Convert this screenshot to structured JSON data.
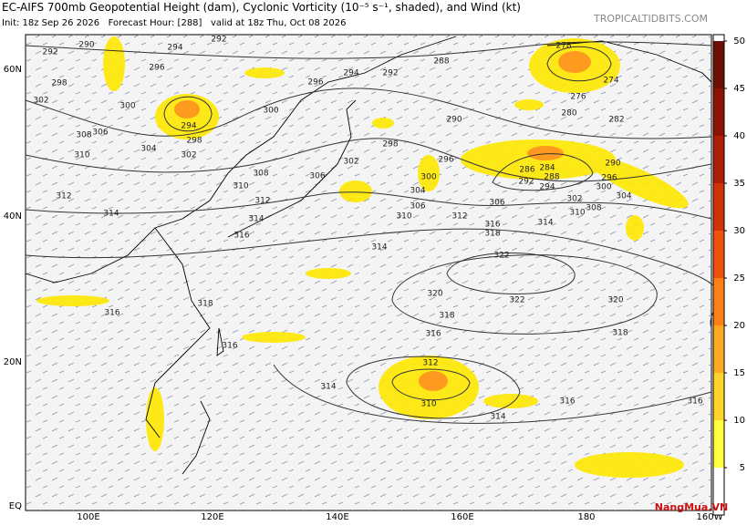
{
  "header": {
    "title": "EC-AIFS 700mb Geopotential Height (dam), Cyclonic Vorticity (10⁻⁵ s⁻¹, shaded), and Wind (kt)",
    "subtitle": "Init: 18z Sep 26 2026   Forecast Hour: [288]   valid at 18z Thu, Oct 08 2026",
    "source": "TROPICALTIDBITS.COM"
  },
  "map": {
    "lat_labels": [
      "60N",
      "40N",
      "20N",
      "EQ"
    ],
    "lon_labels": [
      "100E",
      "120E",
      "140E",
      "160E",
      "180",
      "160W"
    ],
    "contour_labels": [
      "290",
      "294",
      "292",
      "292",
      "296",
      "298",
      "302",
      "300",
      "294",
      "298",
      "306",
      "308",
      "304",
      "310",
      "302",
      "300",
      "294",
      "292",
      "296",
      "288",
      "290",
      "278",
      "274",
      "276",
      "280",
      "282",
      "298",
      "296",
      "302",
      "306",
      "308",
      "310",
      "312",
      "314",
      "316",
      "312",
      "314",
      "300",
      "304",
      "306",
      "310",
      "312",
      "316",
      "318",
      "314",
      "310",
      "308",
      "306",
      "286",
      "284",
      "288",
      "292",
      "294",
      "302",
      "296",
      "300",
      "304",
      "290",
      "314",
      "322",
      "320",
      "322",
      "320",
      "318",
      "316",
      "318",
      "316",
      "318",
      "316",
      "312",
      "314",
      "310",
      "314",
      "316",
      "316"
    ]
  },
  "colorbar": {
    "range": [
      0,
      50
    ],
    "ticks": [
      5,
      10,
      15,
      20,
      25,
      30,
      35,
      40,
      45,
      50
    ],
    "colors": [
      "#ffffff",
      "#ffff3c",
      "#ffd42a",
      "#ffaa1e",
      "#ff7f14",
      "#f0500a",
      "#d23205",
      "#b01e05",
      "#8c1405",
      "#6e0f05"
    ]
  },
  "watermark": "NangMua.VN"
}
